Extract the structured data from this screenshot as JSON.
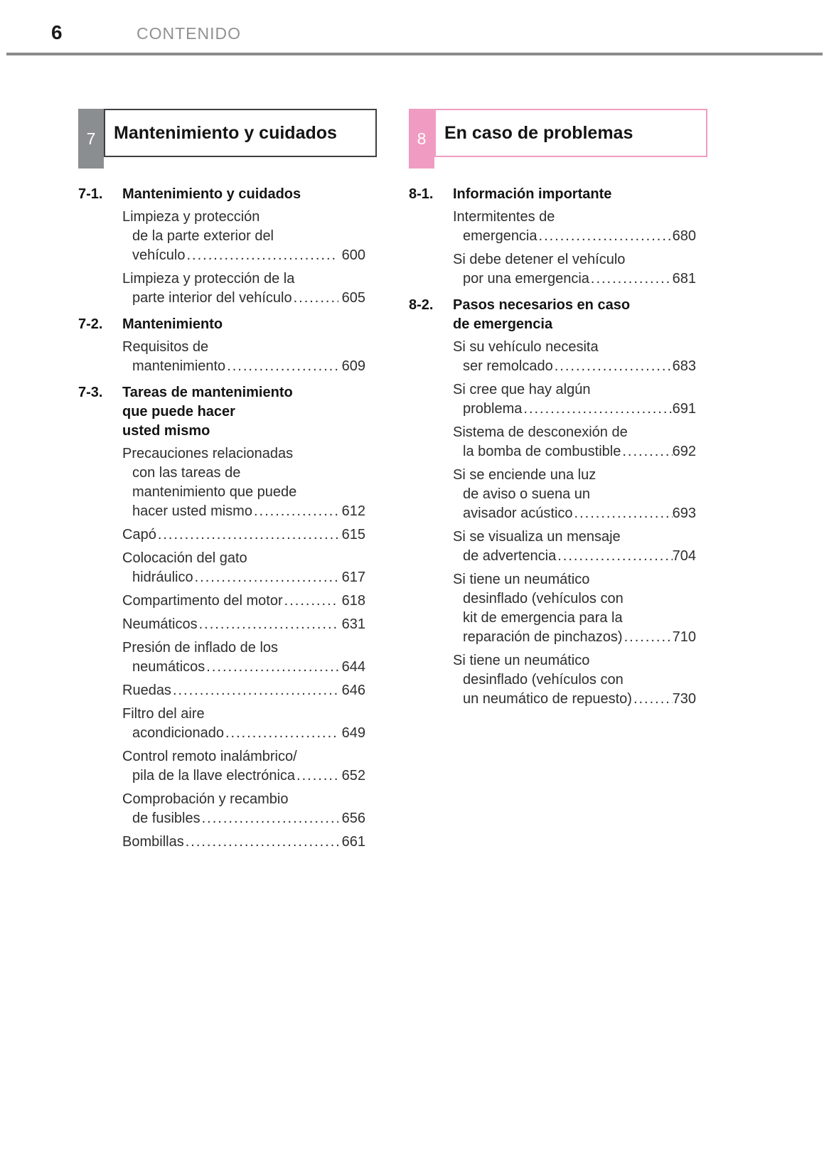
{
  "page": {
    "number": "6",
    "header": "CONTENIDO"
  },
  "columns": [
    {
      "id": "left",
      "chapter_number": "7",
      "chapter_title": "Mantenimiento y cuidados",
      "accent": "#8b8e90",
      "border": "#3f3f3f",
      "sections": [
        {
          "number": "7-1.",
          "title_lines": [
            "Mantenimiento y cuidados"
          ],
          "entries": [
            {
              "lines": [
                "Limpieza y protección",
                "de la parte exterior del"
              ],
              "last": "vehículo",
              "page": "600"
            },
            {
              "lines": [
                "Limpieza y protección de la"
              ],
              "last": "parte interior del vehículo",
              "page": "605"
            }
          ]
        },
        {
          "number": "7-2.",
          "title_lines": [
            "Mantenimiento"
          ],
          "entries": [
            {
              "lines": [
                "Requisitos de"
              ],
              "last": "mantenimiento",
              "page": "609"
            }
          ]
        },
        {
          "number": "7-3.",
          "title_lines": [
            "Tareas de mantenimiento",
            "que puede hacer",
            "usted mismo"
          ],
          "entries": [
            {
              "lines": [
                "Precauciones relacionadas",
                "con las tareas de",
                "mantenimiento que puede"
              ],
              "last": "hacer usted mismo",
              "page": "612"
            },
            {
              "lines": [],
              "last": "Capó",
              "page": "615"
            },
            {
              "lines": [
                "Colocación del gato"
              ],
              "last": "hidráulico",
              "page": "617"
            },
            {
              "lines": [],
              "last": "Compartimento del motor",
              "page": "618"
            },
            {
              "lines": [],
              "last": "Neumáticos",
              "page": "631"
            },
            {
              "lines": [
                "Presión de inflado de los"
              ],
              "last": "neumáticos",
              "page": "644"
            },
            {
              "lines": [],
              "last": "Ruedas",
              "page": "646"
            },
            {
              "lines": [
                "Filtro del aire"
              ],
              "last": "acondicionado",
              "page": "649"
            },
            {
              "lines": [
                "Control remoto inalámbrico/"
              ],
              "last": "pila de la llave electrónica",
              "page": "652"
            },
            {
              "lines": [
                "Comprobación y recambio"
              ],
              "last": "de fusibles",
              "page": "656"
            },
            {
              "lines": [],
              "last": "Bombillas",
              "page": "661"
            }
          ]
        }
      ]
    },
    {
      "id": "right",
      "chapter_number": "8",
      "chapter_title": "En caso de problemas",
      "accent": "#f09cc2",
      "border": "#f09cc2",
      "sections": [
        {
          "number": "8-1.",
          "title_lines": [
            "Información importante"
          ],
          "entries": [
            {
              "lines": [
                "Intermitentes de"
              ],
              "last": "emergencia",
              "page": "680"
            },
            {
              "lines": [
                "Si debe detener el vehículo"
              ],
              "last": "por una emergencia",
              "page": "681"
            }
          ]
        },
        {
          "number": "8-2.",
          "title_lines": [
            "Pasos necesarios en caso",
            "de emergencia"
          ],
          "entries": [
            {
              "lines": [
                "Si su vehículo necesita"
              ],
              "last": "ser remolcado",
              "page": "683"
            },
            {
              "lines": [
                "Si cree que hay algún"
              ],
              "last": "problema",
              "page": "691"
            },
            {
              "lines": [
                "Sistema de desconexión de"
              ],
              "last": "la bomba de combustible",
              "page": "692"
            },
            {
              "lines": [
                "Si se enciende una luz",
                "de aviso o suena un"
              ],
              "last": "avisador acústico",
              "page": "693"
            },
            {
              "lines": [
                "Si se visualiza un mensaje"
              ],
              "last": "de advertencia",
              "page": "704"
            },
            {
              "lines": [
                "Si tiene un neumático",
                "desinflado (vehículos con",
                "kit de emergencia para la"
              ],
              "last": "reparación de pinchazos)",
              "page": "710"
            },
            {
              "lines": [
                "Si tiene un neumático",
                "desinflado (vehículos con"
              ],
              "last": "un neumático de repuesto)",
              "page": "730"
            }
          ]
        }
      ]
    }
  ]
}
